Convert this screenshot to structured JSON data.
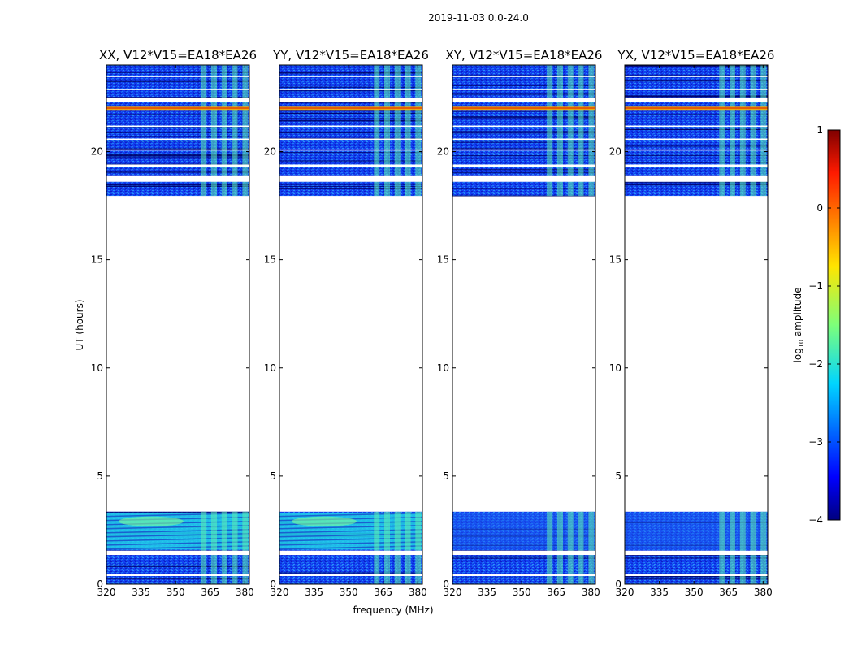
{
  "chart_data": {
    "type": "heatmap",
    "suptitle": "2019-11-03 0.0-24.0",
    "xlabel": "frequency (MHz)",
    "ylabel": "UT (hours)",
    "xlim": [
      320,
      382
    ],
    "ylim": [
      0,
      24
    ],
    "xticks": [
      320,
      335,
      350,
      365,
      380
    ],
    "yticks": [
      0,
      5,
      10,
      15,
      20
    ],
    "panels": [
      {
        "title": "XX, V12*V15=EA18*EA26",
        "low_band_level": "bright"
      },
      {
        "title": "YY, V12*V15=EA18*EA26",
        "low_band_level": "bright"
      },
      {
        "title": "XY, V12*V15=EA18*EA26",
        "low_band_level": "dim"
      },
      {
        "title": "YX, V12*V15=EA18*EA26",
        "low_band_level": "dim"
      }
    ],
    "data_coverage_hours": [
      [
        0.0,
        3.35
      ],
      [
        17.95,
        24.0
      ]
    ],
    "flagged_gaps_hours": [
      [
        1.35,
        1.55
      ],
      [
        0.4,
        0.45
      ],
      [
        18.6,
        18.9
      ],
      [
        19.3,
        19.4
      ],
      [
        22.3,
        22.5
      ]
    ],
    "rfi_band_mhz": [
      362,
      380
    ],
    "colorbar": {
      "label_prefix": "log",
      "label_sub": "10",
      "label_suffix": " amplitude",
      "min": -4,
      "max": 1,
      "ticks": [
        1,
        0,
        -1,
        -2,
        -3,
        -4
      ],
      "tick_labels": [
        "1",
        "0",
        "−1",
        "−2",
        "−3",
        "−4"
      ],
      "colormap": "jet",
      "footnote": "......"
    }
  }
}
